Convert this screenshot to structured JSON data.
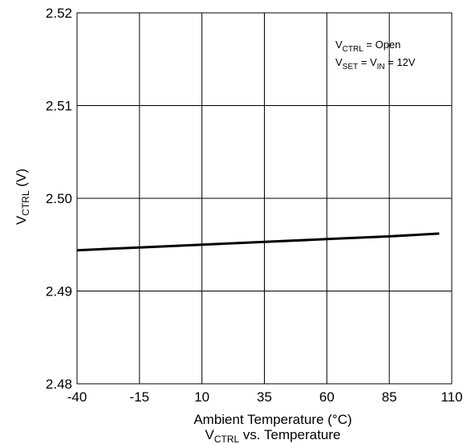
{
  "chart_data": {
    "type": "line",
    "title": "",
    "caption": {
      "main": "V",
      "sub": "CTRL",
      "rest": " vs. Temperature"
    },
    "xlabel": "Ambient Temperature (°C)",
    "ylabel": {
      "main": "V",
      "sub": "CTRL",
      "rest": " (V)"
    },
    "xlim": [
      -40,
      110
    ],
    "ylim": [
      2.48,
      2.52
    ],
    "xticks": [
      "-40",
      "-15",
      "10",
      "35",
      "60",
      "85",
      "110"
    ],
    "yticks": [
      "2.48",
      "2.49",
      "2.50",
      "2.51",
      "2.52"
    ],
    "grid": true,
    "annotations": [
      {
        "main": "V",
        "sub": "CTRL",
        "rest": " = Open"
      },
      {
        "main": "V",
        "sub": "SET",
        "mid": " = V",
        "sub2": "IN",
        "rest": " = 12V"
      }
    ],
    "series": [
      {
        "x": [
          -40,
          -15,
          10,
          35,
          60,
          85,
          105
        ],
        "y": [
          2.4944,
          2.4947,
          2.495,
          2.4953,
          2.4956,
          2.4959,
          2.4962
        ]
      }
    ]
  }
}
